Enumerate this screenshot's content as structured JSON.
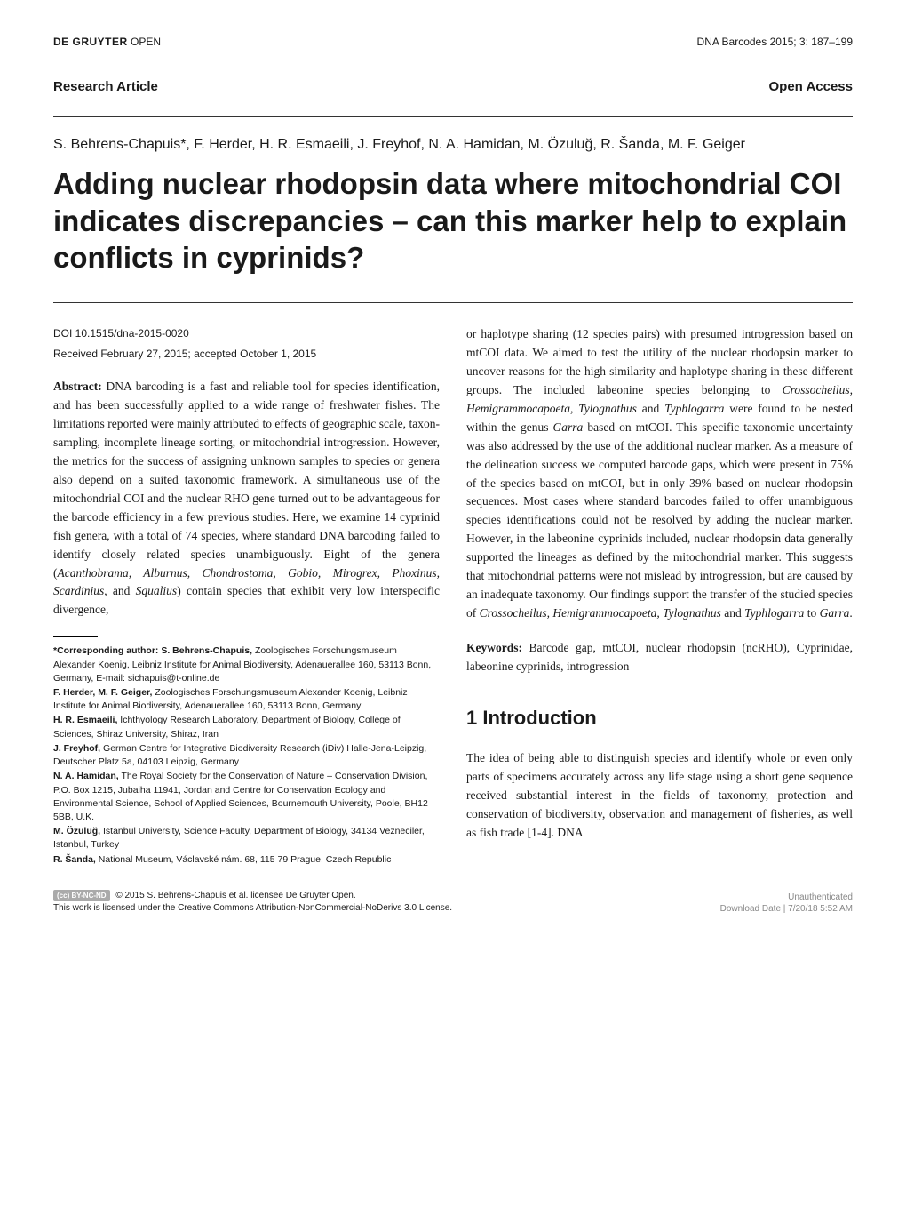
{
  "header": {
    "publisher_bold": "DE GRUYTER",
    "publisher_light": "OPEN",
    "journal": "DNA Barcodes 2015; 3: 187–199"
  },
  "article_type": "Research Article",
  "access_type": "Open Access",
  "authors": "S. Behrens-Chapuis*, F. Herder, H. R. Esmaeili, J. Freyhof, N. A. Hamidan, M. Özuluğ, R. Šanda, M. F. Geiger",
  "title": "Adding nuclear rhodopsin data where mitochondrial COI indicates discrepancies – can this marker help to explain conflicts in cyprinids?",
  "doi": "DOI 10.1515/dna-2015-0020",
  "received": "Received February 27, 2015; accepted October 1, 2015",
  "abstract_label": "Abstract:",
  "abstract_left": " DNA barcoding is a fast and reliable tool for species identification, and has been successfully applied to a wide range of freshwater fishes. The limitations reported were mainly attributed to effects of geographic scale, taxon-sampling, incomplete lineage sorting, or mitochondrial introgression. However, the metrics for the success of assigning unknown samples to species or genera also depend on a suited taxonomic framework. A simultaneous use of the mitochondrial COI and the nuclear RHO gene turned out to be advantageous for the barcode efficiency in a few previous studies. Here, we examine 14 cyprinid fish genera, with a total of 74 species, where standard DNA barcoding failed to identify closely related species unambiguously. Eight of the genera (",
  "abstract_genera": "Acanthobrama, Alburnus, Chondrostoma, Gobio, Mirogrex, Phoxinus, Scardinius",
  "abstract_and": ", and ",
  "abstract_squalius": "Squalius",
  "abstract_left_end": ") contain species that exhibit very low interspecific divergence,",
  "abstract_right_1": "or haplotype sharing (12 species pairs) with presumed introgression based on mtCOI data. We aimed to test the utility of the nuclear rhodopsin marker to uncover reasons for the high similarity and haplotype sharing in these different groups. The included labeonine species belonging to ",
  "abstract_right_genera1": "Crossocheilus, Hemigrammocapoeta, Tylognathus",
  "abstract_right_2": " and ",
  "abstract_right_genera2": "Typhlogarra",
  "abstract_right_3": " were found to be nested within the genus ",
  "abstract_right_garra": "Garra",
  "abstract_right_4": " based on mtCOI. This specific taxonomic uncertainty was also addressed by the use of the additional nuclear marker. As a measure of the delineation success we computed barcode gaps, which were present in 75% of the species based on mtCOI, but in only 39% based on nuclear rhodopsin sequences. Most cases where standard barcodes failed to offer unambiguous species identifications could not be resolved by adding the nuclear marker. However, in the labeonine cyprinids included, nuclear rhodopsin data generally supported the lineages as defined by the mitochondrial marker. This suggests that mitochondrial patterns were not mislead by introgression, but are caused by an inadequate taxonomy. Our findings support the transfer of the studied species of ",
  "abstract_right_genera3": "Crossocheilus, Hemigrammocapoeta, Tylognathus",
  "abstract_right_5": " and ",
  "abstract_right_genera4": "Typhlogarra",
  "abstract_right_6": " to ",
  "abstract_right_garra2": "Garra",
  "abstract_right_7": ".",
  "keywords_label": "Keywords:",
  "keywords": " Barcode gap, mtCOI, nuclear rhodopsin (ncRHO), Cyprinidae, labeonine cyprinids, introgression",
  "section_heading": "1  Introduction",
  "intro_text": "The idea of being able to distinguish species and identify whole or even only parts of specimens accurately across any life stage using a short gene sequence received substantial interest in the fields of taxonomy, protection and conservation of biodiversity, observation and management of fisheries, as well as fish trade [1-4]. DNA",
  "affiliations": [
    {
      "name": "*Corresponding author: S. Behrens-Chapuis,",
      "text": " Zoologisches Forschungsmuseum Alexander Koenig, Leibniz Institute for Animal Biodiversity, Adenauerallee 160, 53113 Bonn, Germany, E-mail: sichapuis@t-online.de"
    },
    {
      "name": "F. Herder,  M. F. Geiger,",
      "text": " Zoologisches Forschungsmuseum Alexander Koenig, Leibniz Institute for Animal Biodiversity, Adenauerallee 160, 53113 Bonn, Germany"
    },
    {
      "name": "H. R. Esmaeili,",
      "text": " Ichthyology Research Laboratory, Department of Biology, College of Sciences, Shiraz University, Shiraz, Iran"
    },
    {
      "name": "J. Freyhof,",
      "text": "  German Centre for Integrative Biodiversity Research (iDiv) Halle-Jena-Leipzig, Deutscher Platz 5a, 04103 Leipzig, Germany"
    },
    {
      "name": "N. A. Hamidan,",
      "text": " The Royal Society for the Conservation of Nature – Conservation Division, P.O. Box 1215, Jubaiha 11941, Jordan and Centre for Conservation Ecology and Environmental Science, School of Applied Sciences, Bournemouth University, Poole, BH12 5BB, U.K."
    },
    {
      "name": "M. Özuluğ,",
      "text": " Istanbul University, Science Faculty, Department of Biology, 34134 Vezneciler, Istanbul, Turkey"
    },
    {
      "name": "R. Šanda,",
      "text": " National Museum, Václavské nám. 68, 115 79 Prague, Czech Republic"
    }
  ],
  "license": {
    "badge": "(cc) BY-NC-ND",
    "copyright": " © 2015 S. Behrens-Chapuis et al. licensee De Gruyter Open.",
    "text": "This work is licensed under the Creative Commons Attribution-NonCommercial-NoDerivs 3.0 License."
  },
  "download": {
    "line1": "Unauthenticated",
    "line2": "Download Date | 7/20/18 5:52 AM"
  }
}
